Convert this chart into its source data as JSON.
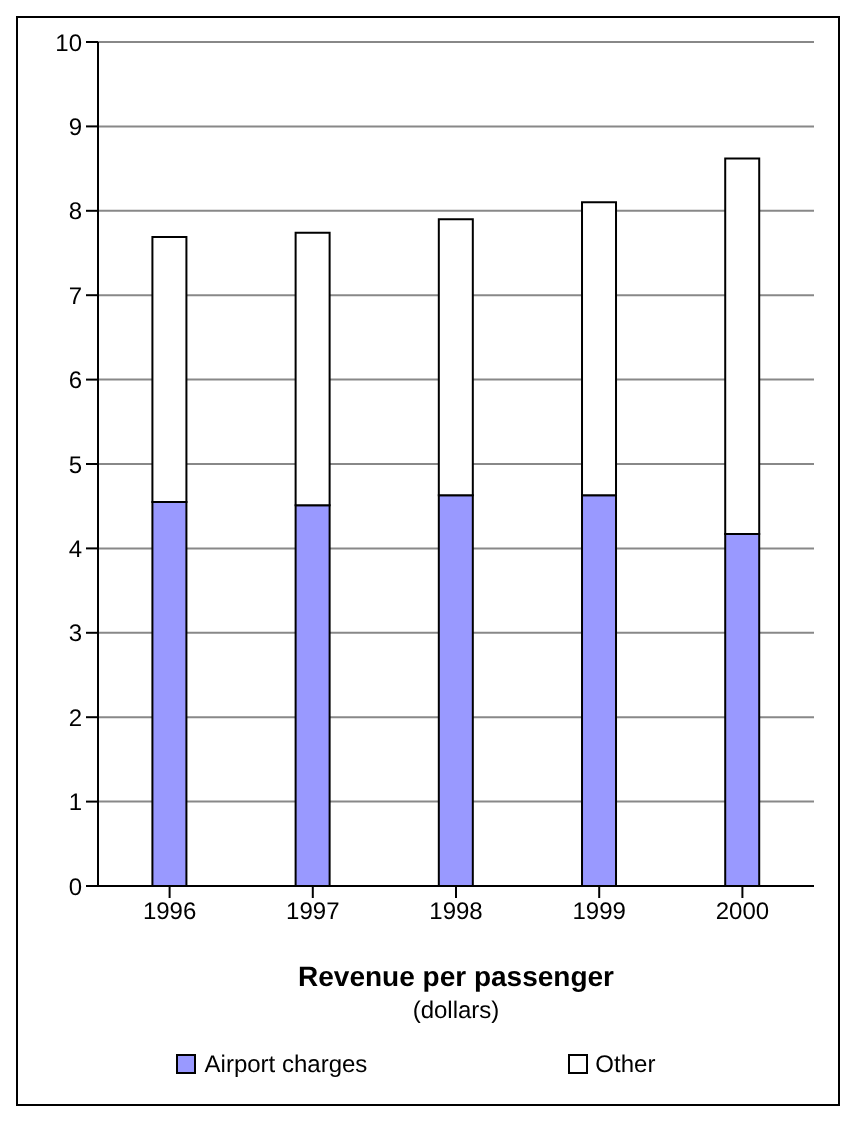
{
  "chart_data": {
    "type": "bar",
    "title": "Revenue per passenger",
    "subtitle": "(dollars)",
    "stacked": true,
    "categories": [
      "1996",
      "1997",
      "1998",
      "1999",
      "2000"
    ],
    "series": [
      {
        "name": "Airport charges",
        "color": "#9999ff",
        "values": [
          4.55,
          4.51,
          4.63,
          4.63,
          4.17
        ]
      },
      {
        "name": "Other",
        "color": "#ffffff",
        "values": [
          3.14,
          3.23,
          3.27,
          3.47,
          4.45
        ]
      }
    ],
    "ylim": [
      0,
      10
    ],
    "yticks": [
      0,
      1,
      2,
      3,
      4,
      5,
      6,
      7,
      8,
      9,
      10
    ],
    "grid": "y",
    "legend": "bottom"
  }
}
